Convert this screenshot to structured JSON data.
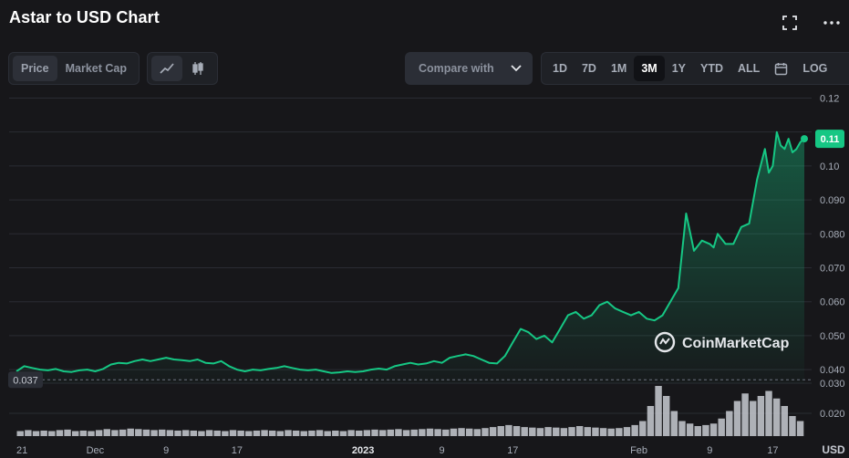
{
  "header": {
    "title": "Astar to USD Chart",
    "fullscreen_icon": "fullscreen-icon",
    "more_icon": "more-dots-icon"
  },
  "toolbar": {
    "metric_tabs": [
      {
        "label": "Price",
        "active": true
      },
      {
        "label": "Market Cap",
        "active": false
      }
    ],
    "chart_type_icons": [
      {
        "name": "line-chart-icon",
        "active": true
      },
      {
        "name": "candlestick-icon",
        "active": false
      }
    ],
    "compare_label": "Compare with",
    "ranges": [
      {
        "label": "1D",
        "active": false
      },
      {
        "label": "7D",
        "active": false
      },
      {
        "label": "1M",
        "active": false
      },
      {
        "label": "3M",
        "active": true
      },
      {
        "label": "1Y",
        "active": false
      },
      {
        "label": "YTD",
        "active": false
      },
      {
        "label": "ALL",
        "active": false
      }
    ],
    "calendar_icon": "calendar-icon",
    "log_label": "LOG"
  },
  "watermark": "CoinMarketCap",
  "chart_data": {
    "type": "line",
    "title": "Astar to USD Chart",
    "ylabel": "USD",
    "ylim": [
      0.036,
      0.122
    ],
    "y_ticks": [
      0.12,
      0.11,
      0.1,
      0.09,
      0.08,
      0.07,
      0.06,
      0.05,
      0.04
    ],
    "y_tick_labels": [
      "0.12",
      "",
      "0.10",
      "0.090",
      "0.080",
      "0.070",
      "0.060",
      "0.050",
      "0.040"
    ],
    "volume_ticks": [
      "0.030",
      "0.020"
    ],
    "x_tick_labels": [
      "21",
      "Dec",
      "9",
      "17",
      "2023",
      "9",
      "17",
      "Feb",
      "9",
      "17"
    ],
    "x_tick_positions": [
      0,
      0.1,
      0.19,
      0.28,
      0.44,
      0.54,
      0.63,
      0.79,
      0.88,
      0.96
    ],
    "baseline_value": 0.037,
    "baseline_label": "0.037",
    "current_value": 0.108,
    "current_label": "0.11",
    "series": [
      {
        "color": "#16c784",
        "x": [
          0,
          0.01,
          0.02,
          0.03,
          0.04,
          0.05,
          0.06,
          0.07,
          0.08,
          0.09,
          0.1,
          0.11,
          0.12,
          0.13,
          0.14,
          0.15,
          0.16,
          0.17,
          0.18,
          0.19,
          0.2,
          0.21,
          0.22,
          0.23,
          0.24,
          0.25,
          0.26,
          0.27,
          0.28,
          0.29,
          0.3,
          0.31,
          0.32,
          0.33,
          0.34,
          0.35,
          0.36,
          0.37,
          0.38,
          0.39,
          0.4,
          0.41,
          0.42,
          0.43,
          0.44,
          0.45,
          0.46,
          0.47,
          0.48,
          0.49,
          0.5,
          0.51,
          0.52,
          0.53,
          0.54,
          0.55,
          0.56,
          0.57,
          0.58,
          0.59,
          0.6,
          0.61,
          0.62,
          0.63,
          0.64,
          0.65,
          0.66,
          0.67,
          0.68,
          0.69,
          0.7,
          0.71,
          0.72,
          0.73,
          0.74,
          0.75,
          0.76,
          0.77,
          0.78,
          0.79,
          0.8,
          0.81,
          0.82,
          0.83,
          0.84,
          0.85,
          0.86,
          0.87,
          0.88,
          0.885,
          0.89,
          0.9,
          0.91,
          0.92,
          0.93,
          0.94,
          0.95,
          0.955,
          0.96,
          0.965,
          0.97,
          0.975,
          0.98,
          0.985,
          0.99,
          0.995,
          1.0
        ],
        "values": [
          0.0395,
          0.041,
          0.0405,
          0.04,
          0.0398,
          0.0402,
          0.0395,
          0.0393,
          0.0398,
          0.04,
          0.0395,
          0.0402,
          0.0415,
          0.042,
          0.0418,
          0.0425,
          0.043,
          0.0425,
          0.043,
          0.0435,
          0.043,
          0.0428,
          0.0425,
          0.043,
          0.042,
          0.0418,
          0.0425,
          0.041,
          0.04,
          0.0395,
          0.04,
          0.0398,
          0.0402,
          0.0405,
          0.041,
          0.0405,
          0.04,
          0.0398,
          0.04,
          0.0395,
          0.039,
          0.0392,
          0.0395,
          0.0393,
          0.0395,
          0.04,
          0.0403,
          0.04,
          0.041,
          0.0415,
          0.042,
          0.0415,
          0.0418,
          0.0425,
          0.042,
          0.0435,
          0.044,
          0.0445,
          0.044,
          0.043,
          0.042,
          0.0418,
          0.044,
          0.048,
          0.052,
          0.051,
          0.049,
          0.05,
          0.048,
          0.052,
          0.056,
          0.057,
          0.055,
          0.056,
          0.059,
          0.06,
          0.058,
          0.057,
          0.056,
          0.057,
          0.055,
          0.0545,
          0.056,
          0.06,
          0.064,
          0.086,
          0.075,
          0.078,
          0.077,
          0.076,
          0.08,
          0.077,
          0.077,
          0.082,
          0.083,
          0.096,
          0.105,
          0.098,
          0.1,
          0.11,
          0.106,
          0.105,
          0.108,
          0.104,
          0.105,
          0.107,
          0.108
        ]
      }
    ],
    "volume": [
      0.1,
      0.12,
      0.1,
      0.11,
      0.1,
      0.12,
      0.13,
      0.1,
      0.11,
      0.1,
      0.12,
      0.14,
      0.12,
      0.13,
      0.15,
      0.14,
      0.13,
      0.12,
      0.13,
      0.12,
      0.11,
      0.12,
      0.11,
      0.1,
      0.12,
      0.11,
      0.1,
      0.12,
      0.11,
      0.1,
      0.11,
      0.12,
      0.11,
      0.1,
      0.12,
      0.11,
      0.1,
      0.11,
      0.12,
      0.1,
      0.11,
      0.1,
      0.12,
      0.11,
      0.12,
      0.13,
      0.12,
      0.13,
      0.14,
      0.12,
      0.13,
      0.14,
      0.15,
      0.14,
      0.13,
      0.15,
      0.16,
      0.15,
      0.14,
      0.16,
      0.18,
      0.2,
      0.22,
      0.2,
      0.18,
      0.17,
      0.16,
      0.18,
      0.17,
      0.16,
      0.18,
      0.2,
      0.18,
      0.17,
      0.16,
      0.15,
      0.16,
      0.18,
      0.22,
      0.3,
      0.6,
      1.0,
      0.8,
      0.5,
      0.3,
      0.25,
      0.2,
      0.22,
      0.25,
      0.35,
      0.5,
      0.7,
      0.85,
      0.7,
      0.8,
      0.9,
      0.75,
      0.6,
      0.4,
      0.3
    ]
  }
}
